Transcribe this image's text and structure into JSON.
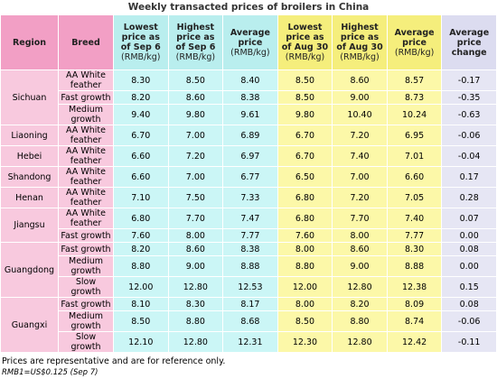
{
  "title": "Weekly transacted prices of broilers in China",
  "table": {
    "header": [
      {
        "text": "Region"
      },
      {
        "text": "Breed"
      },
      {
        "text": "Lowest price as of Sep 6",
        "unit": "(RMB/kg)"
      },
      {
        "text": "Highest price as of Sep 6",
        "unit": "(RMB/kg)"
      },
      {
        "text": "Average price",
        "unit": "(RMB/kg)"
      },
      {
        "text": "Lowest price as of Aug 30",
        "unit": "(RMB/kg)"
      },
      {
        "text": "Highest price as of Aug 30",
        "unit": "(RMB/kg)"
      },
      {
        "text": "Average price",
        "unit": "(RMB/kg)"
      },
      {
        "text": "Average price change"
      }
    ],
    "groups": [
      {
        "region": "Sichuan",
        "rows": [
          [
            "AA White feather",
            "8.30",
            "8.50",
            "8.40",
            "8.50",
            "8.60",
            "8.57",
            "-0.17"
          ],
          [
            "Fast growth",
            "8.20",
            "8.60",
            "8.38",
            "8.50",
            "9.00",
            "8.73",
            "-0.35"
          ],
          [
            "Medium growth",
            "9.40",
            "9.80",
            "9.61",
            "9.80",
            "10.40",
            "10.24",
            "-0.63"
          ]
        ]
      },
      {
        "region": "Liaoning",
        "rows": [
          [
            "AA White feather",
            "6.70",
            "7.00",
            "6.89",
            "6.70",
            "7.20",
            "6.95",
            "-0.06"
          ]
        ]
      },
      {
        "region": "Hebei",
        "rows": [
          [
            "AA White feather",
            "6.60",
            "7.20",
            "6.97",
            "6.70",
            "7.40",
            "7.01",
            "-0.04"
          ]
        ]
      },
      {
        "region": "Shandong",
        "rows": [
          [
            "AA White feather",
            "6.60",
            "7.00",
            "6.77",
            "6.50",
            "7.00",
            "6.60",
            "0.17"
          ]
        ]
      },
      {
        "region": "Henan",
        "rows": [
          [
            "AA White feather",
            "7.10",
            "7.50",
            "7.33",
            "6.80",
            "7.20",
            "7.05",
            "0.28"
          ]
        ]
      },
      {
        "region": "Jiangsu",
        "rows": [
          [
            "AA White feather",
            "6.80",
            "7.70",
            "7.47",
            "6.80",
            "7.70",
            "7.40",
            "0.07"
          ],
          [
            "Fast growth",
            "7.60",
            "8.00",
            "7.77",
            "7.60",
            "8.00",
            "7.77",
            "0.00"
          ]
        ]
      },
      {
        "region": "Guangdong",
        "rows": [
          [
            "Fast growth",
            "8.20",
            "8.60",
            "8.38",
            "8.00",
            "8.60",
            "8.30",
            "0.08"
          ],
          [
            "Medium growth",
            "8.80",
            "9.00",
            "8.88",
            "8.80",
            "9.00",
            "8.88",
            "0.00"
          ],
          [
            "Slow growth",
            "12.00",
            "12.80",
            "12.53",
            "12.00",
            "12.80",
            "12.38",
            "0.15"
          ]
        ]
      },
      {
        "region": "Guangxi",
        "rows": [
          [
            "Fast growth",
            "8.10",
            "8.30",
            "8.17",
            "8.00",
            "8.20",
            "8.09",
            "0.08"
          ],
          [
            "Medium growth",
            "8.50",
            "8.80",
            "8.68",
            "8.50",
            "8.80",
            "8.74",
            "-0.06"
          ],
          [
            "Slow growth",
            "12.10",
            "12.80",
            "12.31",
            "12.30",
            "12.80",
            "12.42",
            "-0.11"
          ]
        ]
      }
    ]
  },
  "footer": {
    "note": "Prices are representative and are for reference only.",
    "rate": "RMB1=US$0.125 (Sep 7)"
  }
}
